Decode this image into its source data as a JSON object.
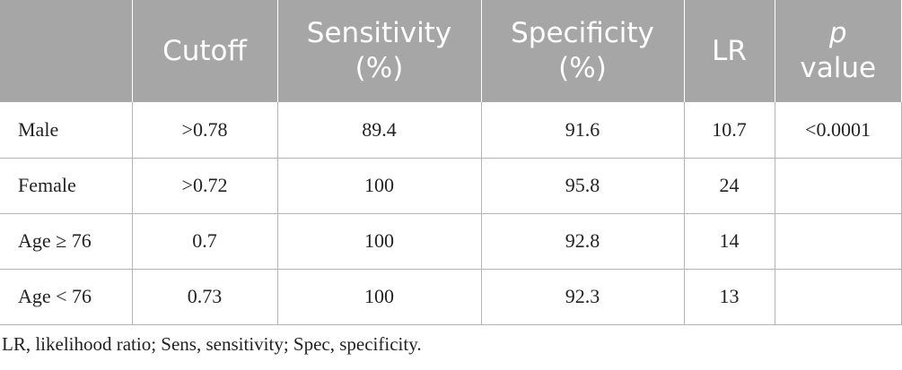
{
  "table": {
    "headers": [
      {
        "line1": "",
        "line2": ""
      },
      {
        "line1": "Cutoff",
        "line2": ""
      },
      {
        "line1": "Sensitivity",
        "line2": "(%)"
      },
      {
        "line1": "Specificity",
        "line2": "(%)"
      },
      {
        "line1": "LR",
        "line2": ""
      },
      {
        "line1": "p",
        "line2": "value"
      }
    ],
    "rows": [
      [
        "Male",
        ">0.78",
        "89.4",
        "91.6",
        "10.7",
        "<0.0001"
      ],
      [
        "Female",
        ">0.72",
        "100",
        "95.8",
        "24",
        ""
      ],
      [
        "Age ≥ 76",
        "0.7",
        "100",
        "92.8",
        "14",
        ""
      ],
      [
        "Age < 76",
        "0.73",
        "100",
        "92.3",
        "13",
        ""
      ]
    ]
  },
  "footnote": "LR, likelihood ratio; Sens, sensitivity; Spec, specificity."
}
